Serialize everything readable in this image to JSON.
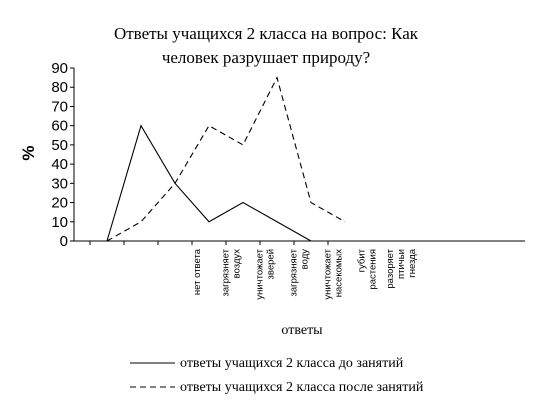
{
  "chart_data": {
    "type": "line",
    "title_lines": [
      "Ответы учащихся 2 класса на вопрос: Как",
      "человек разрушает природу?"
    ],
    "ylabel": "%",
    "xlabel": "ответы",
    "ylim": [
      0,
      90
    ],
    "yticks": [
      "0",
      "10",
      "20",
      "30",
      "40",
      "50",
      "60",
      "70",
      "80",
      "90"
    ],
    "categories": [
      {
        "id": "blank",
        "lines": []
      },
      {
        "id": "no-answer",
        "lines": [
          "нет ответа"
        ]
      },
      {
        "id": "pollute-air",
        "lines": [
          "загрязняет",
          "воздух"
        ]
      },
      {
        "id": "kill-animals",
        "lines": [
          "уничтожает",
          "зверей"
        ]
      },
      {
        "id": "pollute-water",
        "lines": [
          "загрязняет",
          "воду"
        ]
      },
      {
        "id": "kill-insects",
        "lines": [
          "уничтожает",
          "насекомых"
        ]
      },
      {
        "id": "kill-plants",
        "lines": [
          "губит",
          "растения"
        ]
      },
      {
        "id": "ruin-nests",
        "lines": [
          "разоряет",
          "птичьи",
          "гнезда"
        ]
      }
    ],
    "series": [
      {
        "name": "ответы учащихся 2 класса до занятий",
        "style": "solid",
        "values": [
          0,
          60,
          30,
          10,
          20,
          10,
          0,
          null
        ]
      },
      {
        "name": "ответы учащихся 2 класса после занятий",
        "style": "dashed",
        "values": [
          0,
          10,
          30,
          60,
          50,
          85,
          20,
          10
        ]
      }
    ],
    "grid": false,
    "legend_position": "bottom"
  }
}
